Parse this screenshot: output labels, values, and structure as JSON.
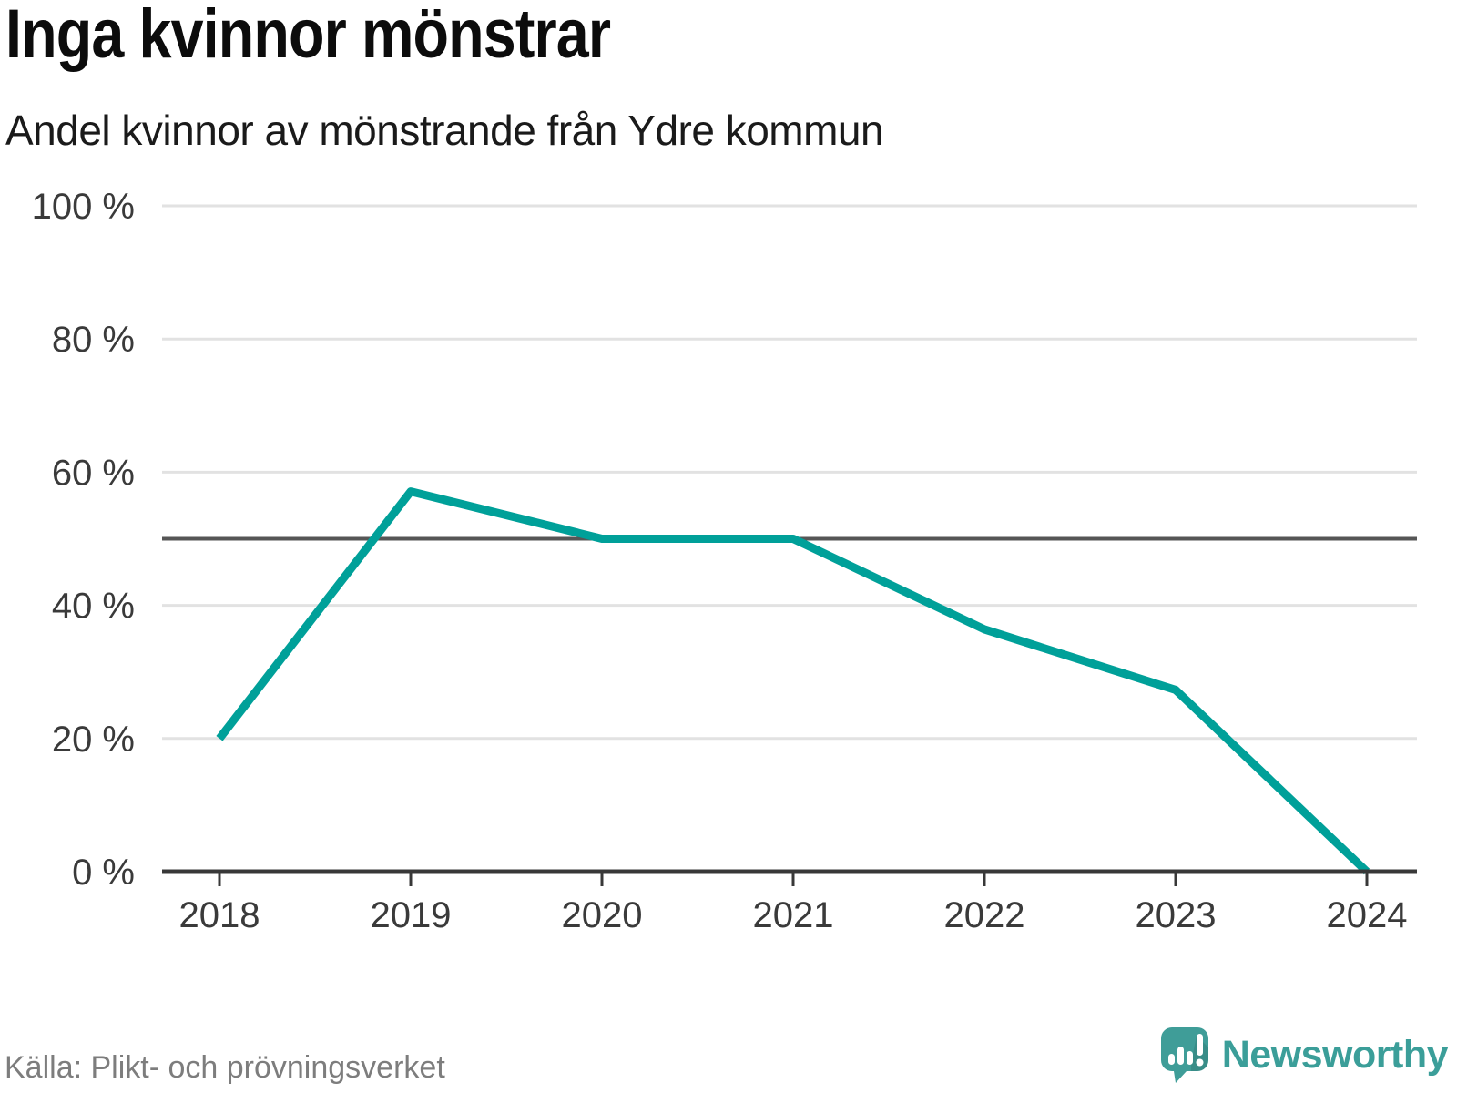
{
  "header": {
    "title": "Inga kvinnor mönstrar",
    "subtitle": "Andel kvinnor av mönstrande från Ydre kommun"
  },
  "footer": {
    "source": "Källa: Plikt- och prövningsverket",
    "brand": "Newsworthy"
  },
  "chart_data": {
    "type": "line",
    "title": "Inga kvinnor mönstrar",
    "subtitle": "Andel kvinnor av mönstrande från Ydre kommun",
    "x": [
      "2018",
      "2019",
      "2020",
      "2021",
      "2022",
      "2023",
      "2024"
    ],
    "values": [
      20,
      57.1,
      50,
      50,
      36.4,
      27.3,
      0
    ],
    "unit": "%",
    "xlabel": "",
    "ylabel": "",
    "ylim": [
      0,
      100
    ],
    "yticks": [
      0,
      20,
      40,
      60,
      80,
      100
    ],
    "ytick_labels": [
      "0 %",
      "20 %",
      "40 %",
      "60 %",
      "80 %",
      "100 %"
    ],
    "reference_line": 50,
    "grid": true,
    "legend": false,
    "colors": {
      "line": "#00a099",
      "reference": "#565656",
      "grid": "#e2e2e2",
      "axis": "#383838",
      "tick_text": "#3a3a3a",
      "brand_teal": "#3f9d98"
    }
  }
}
